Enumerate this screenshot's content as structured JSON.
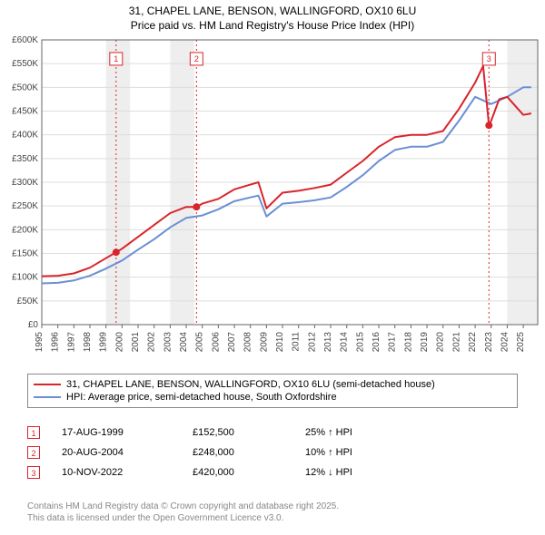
{
  "title_line1": "31, CHAPEL LANE, BENSON, WALLINGFORD, OX10 6LU",
  "title_line2": "Price paid vs. HM Land Registry's House Price Index (HPI)",
  "chart": {
    "type": "line",
    "background_color": "#ffffff",
    "grid_color": "#dddddd",
    "axis_color": "#666666",
    "x": {
      "min": 1995,
      "max": 2025.9,
      "ticks": [
        1995,
        1996,
        1997,
        1998,
        1999,
        2000,
        2001,
        2002,
        2003,
        2004,
        2005,
        2006,
        2007,
        2008,
        2009,
        2010,
        2011,
        2012,
        2013,
        2014,
        2015,
        2016,
        2017,
        2018,
        2019,
        2020,
        2021,
        2022,
        2023,
        2024,
        2025
      ],
      "label_fontsize": 10,
      "label_rotation": -90
    },
    "y": {
      "min": 0,
      "max": 600000,
      "ticks": [
        0,
        50000,
        100000,
        150000,
        200000,
        250000,
        300000,
        350000,
        400000,
        450000,
        500000,
        550000,
        600000
      ],
      "tick_labels": [
        "£0",
        "£50K",
        "£100K",
        "£150K",
        "£200K",
        "£250K",
        "£300K",
        "£350K",
        "£400K",
        "£450K",
        "£500K",
        "£550K",
        "£600K"
      ],
      "label_fontsize": 10
    },
    "band_years": [
      [
        1999,
        2000.5
      ],
      [
        2003,
        2004.5
      ],
      [
        2024,
        2025.9
      ]
    ],
    "band_color": "#eeeeee",
    "series": {
      "property": {
        "label": "31, CHAPEL LANE, BENSON, WALLINGFORD, OX10 6LU (semi-detached house)",
        "color": "#d9242b",
        "line_width": 2,
        "x": [
          1995,
          1996,
          1997,
          1998,
          1999,
          1999.63,
          2000,
          2001,
          2002,
          2003,
          2004,
          2004.64,
          2005,
          2006,
          2007,
          2008,
          2008.5,
          2009,
          2010,
          2011,
          2012,
          2013,
          2014,
          2015,
          2016,
          2017,
          2018,
          2019,
          2020,
          2021,
          2022,
          2022.5,
          2022.86,
          2023,
          2023.5,
          2024,
          2025,
          2025.5
        ],
        "y": [
          102000,
          103000,
          108000,
          120000,
          140000,
          152500,
          160000,
          185000,
          210000,
          235000,
          248000,
          248000,
          255000,
          265000,
          285000,
          295000,
          300000,
          245000,
          278000,
          282000,
          288000,
          295000,
          320000,
          345000,
          375000,
          395000,
          400000,
          400000,
          408000,
          455000,
          510000,
          545000,
          420000,
          430000,
          475000,
          480000,
          442000,
          445000
        ]
      },
      "hpi": {
        "label": "HPI: Average price, semi-detached house, South Oxfordshire",
        "color": "#6a8fd4",
        "line_width": 2,
        "x": [
          1995,
          1996,
          1997,
          1998,
          1999,
          2000,
          2001,
          2002,
          2003,
          2004,
          2005,
          2006,
          2007,
          2008,
          2008.5,
          2009,
          2010,
          2011,
          2012,
          2013,
          2014,
          2015,
          2016,
          2017,
          2018,
          2019,
          2020,
          2021,
          2022,
          2023,
          2024,
          2025,
          2025.5
        ],
        "y": [
          87000,
          88000,
          93000,
          103000,
          118000,
          135000,
          158000,
          180000,
          205000,
          225000,
          230000,
          243000,
          260000,
          268000,
          272000,
          228000,
          255000,
          258000,
          262000,
          268000,
          290000,
          315000,
          345000,
          368000,
          375000,
          375000,
          385000,
          430000,
          480000,
          465000,
          480000,
          500000,
          500000
        ]
      }
    },
    "event_markers": [
      {
        "n": "1",
        "x": 1999.63,
        "y": 152500,
        "label_y": 560000
      },
      {
        "n": "2",
        "x": 2004.64,
        "y": 248000,
        "label_y": 560000
      },
      {
        "n": "3",
        "x": 2022.86,
        "y": 420000,
        "label_y": 560000
      }
    ],
    "event_line_color": "#d9242b",
    "event_dot_color": "#d9242b",
    "event_dot_radius": 4
  },
  "legend": [
    {
      "color": "#d9242b",
      "label": "31, CHAPEL LANE, BENSON, WALLINGFORD, OX10 6LU (semi-detached house)"
    },
    {
      "color": "#6a8fd4",
      "label": "HPI: Average price, semi-detached house, South Oxfordshire"
    }
  ],
  "markers_table": [
    {
      "n": "1",
      "date": "17-AUG-1999",
      "price": "£152,500",
      "change": "25% ↑ HPI"
    },
    {
      "n": "2",
      "date": "20-AUG-2004",
      "price": "£248,000",
      "change": "10% ↑ HPI"
    },
    {
      "n": "3",
      "date": "10-NOV-2022",
      "price": "£420,000",
      "change": "12% ↓ HPI"
    }
  ],
  "attribution_line1": "Contains HM Land Registry data © Crown copyright and database right 2025.",
  "attribution_line2": "This data is licensed under the Open Government Licence v3.0."
}
